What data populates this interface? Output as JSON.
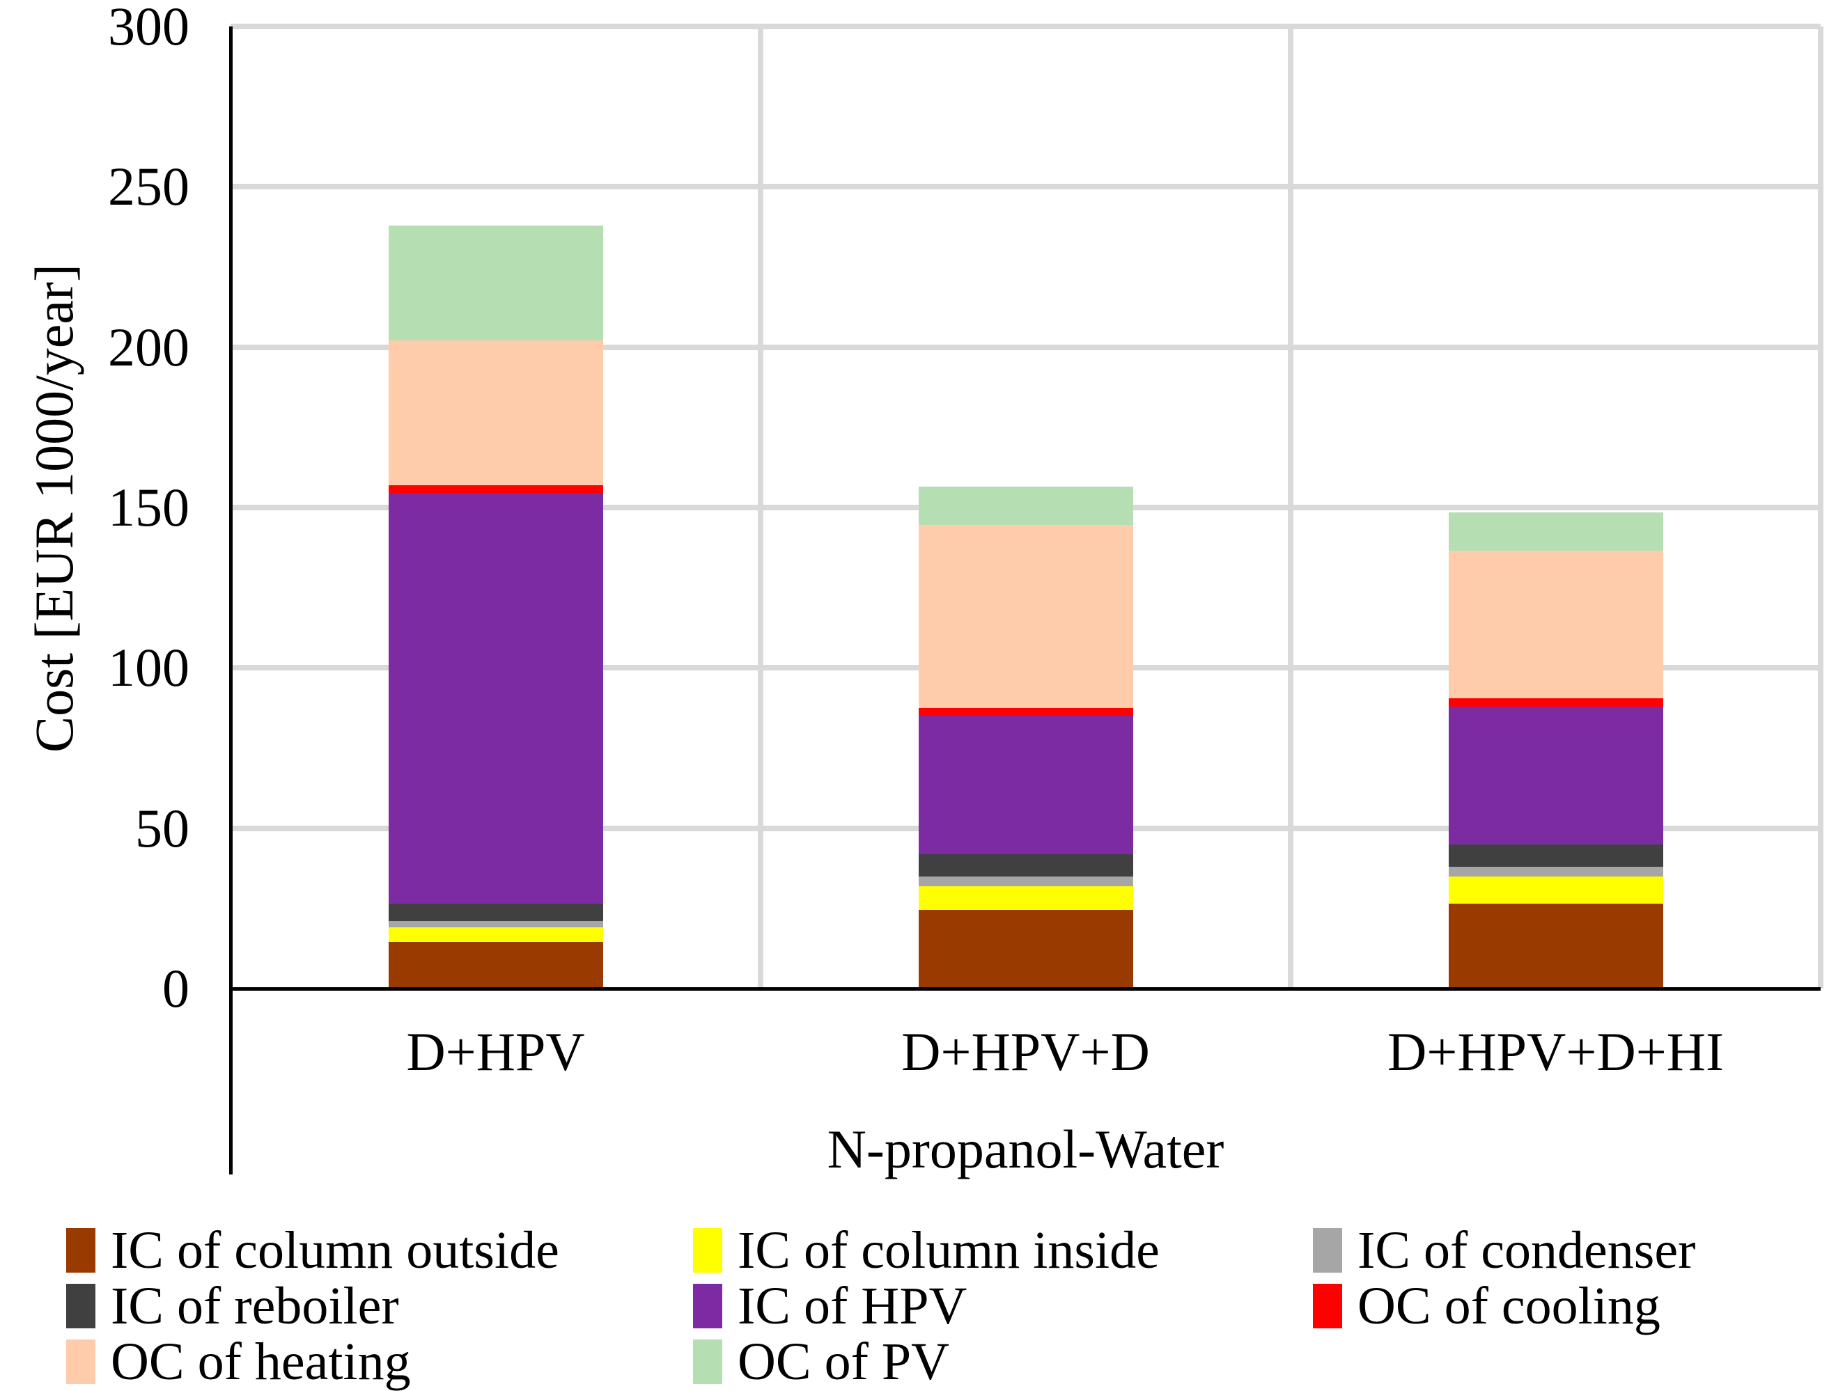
{
  "chart_data": {
    "type": "bar",
    "stacked": true,
    "title": "",
    "categories": [
      "D+HPV",
      "D+HPV+D",
      "D+HPV+D+HI"
    ],
    "series": [
      {
        "name": "IC of column outside",
        "color": "#993A00",
        "values": [
          14.5,
          24.5,
          26.5
        ]
      },
      {
        "name": "IC of column inside",
        "color": "#FFFF00",
        "values": [
          4.5,
          7.5,
          8.5
        ]
      },
      {
        "name": "IC of condenser",
        "color": "#A6A6A6",
        "values": [
          2,
          3,
          3
        ]
      },
      {
        "name": "IC of reboiler",
        "color": "#404040",
        "values": [
          5.5,
          7,
          7
        ]
      },
      {
        "name": "IC of HPV",
        "color": "#7C2BA3",
        "values": [
          128,
          43,
          43
        ]
      },
      {
        "name": "OC of cooling",
        "color": "#FF0000",
        "values": [
          2.5,
          2.5,
          2.5
        ]
      },
      {
        "name": "OC of heating",
        "color": "#FFCCAB",
        "values": [
          45,
          57,
          46
        ]
      },
      {
        "name": "OC of PV",
        "color": "#B5DFB3",
        "values": [
          36,
          12,
          12
        ]
      }
    ],
    "totals": [
      238,
      156.5,
      148.5
    ],
    "xlabel": "N-propanol-Water",
    "ylabel": "Cost [EUR 1000/year]",
    "ylim": [
      0,
      300
    ],
    "yticks": [
      0,
      50,
      100,
      150,
      200,
      250,
      300
    ],
    "grid": true,
    "gridline_color": "#D9D9D9",
    "axis_color": "#000000",
    "legend_position": "bottom",
    "legend_columns": 3
  }
}
